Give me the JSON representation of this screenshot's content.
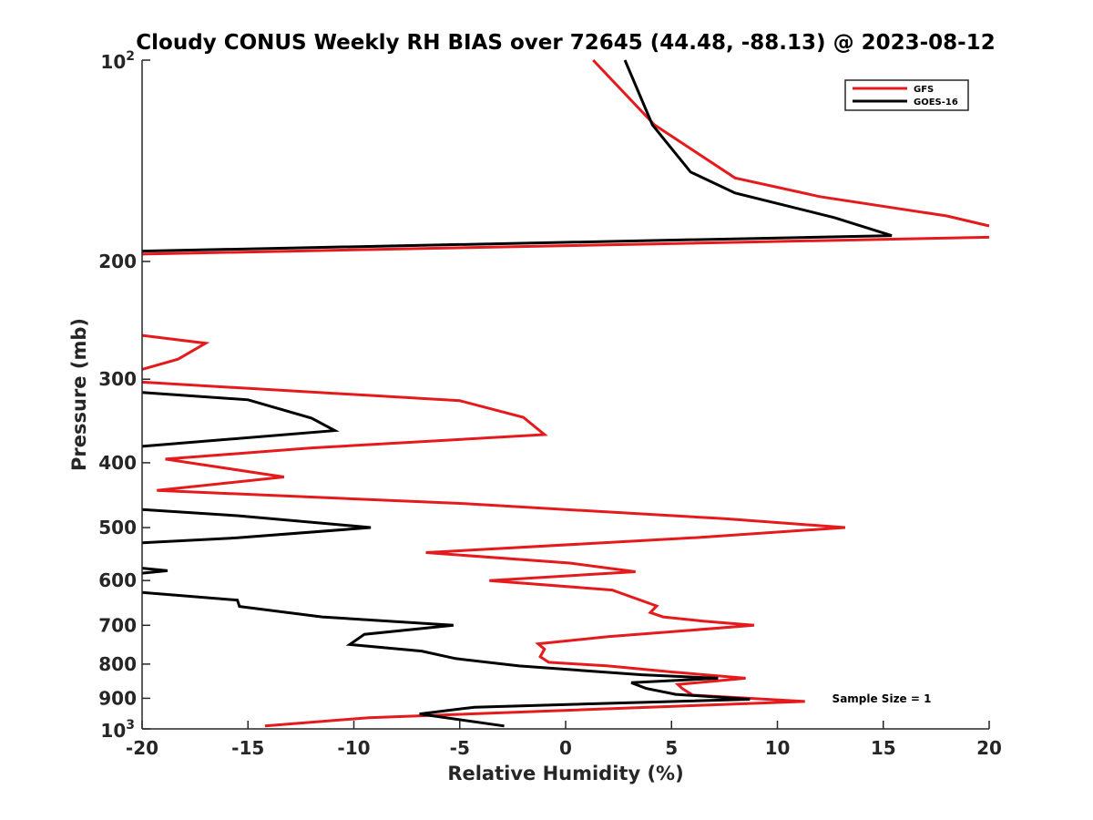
{
  "chart_data": {
    "type": "line",
    "title": "Cloudy CONUS Weekly RH BIAS over 72645 (44.48, -88.13) @ 2023-08-12",
    "xlabel": "Relative Humidity (%)",
    "ylabel": "Pressure (mb)",
    "xlim": [
      -20,
      20
    ],
    "ylim": [
      100,
      1000
    ],
    "y_scale": "log",
    "y_reversed": true,
    "grid": false,
    "x_ticks": [
      "-20",
      "-15",
      "-10",
      "-5",
      "0",
      "5",
      "10",
      "15",
      "20"
    ],
    "y_ticks": [
      {
        "value": 100,
        "label": "10",
        "sup": "2"
      },
      {
        "value": 200,
        "label": "200",
        "sup": ""
      },
      {
        "value": 300,
        "label": "300",
        "sup": ""
      },
      {
        "value": 400,
        "label": "400",
        "sup": ""
      },
      {
        "value": 500,
        "label": "500",
        "sup": ""
      },
      {
        "value": 600,
        "label": "600",
        "sup": ""
      },
      {
        "value": 700,
        "label": "700",
        "sup": ""
      },
      {
        "value": 800,
        "label": "800",
        "sup": ""
      },
      {
        "value": 900,
        "label": "900",
        "sup": ""
      },
      {
        "value": 1000,
        "label": "10",
        "sup": "3"
      }
    ],
    "legend_position": "top-right",
    "annotation": "Sample Size = 1",
    "series": [
      {
        "name": "GFS",
        "color": "#e41a1c",
        "segments": [
          [
            [
              1.3,
              100
            ],
            [
              4.2,
              125
            ],
            [
              8,
              150
            ],
            [
              12,
              160
            ],
            [
              18,
              171
            ],
            [
              20,
              177
            ]
          ],
          [
            [
              20,
              184
            ],
            [
              -20,
              195
            ]
          ],
          [
            [
              -20,
              258
            ],
            [
              -17,
              265
            ],
            [
              -18.3,
              280
            ],
            [
              -20,
              290
            ]
          ],
          [
            [
              -20,
              303
            ],
            [
              -5,
              323
            ],
            [
              -2,
              342
            ],
            [
              -1,
              363
            ],
            [
              -12,
              380
            ],
            [
              -18.9,
              395
            ],
            [
              -13.3,
              420
            ],
            [
              -19.3,
              440
            ],
            [
              -5,
              460
            ],
            [
              7.5,
              485
            ],
            [
              13.2,
              500
            ],
            [
              6,
              518
            ],
            [
              -6.6,
              545
            ],
            [
              0.2,
              565
            ],
            [
              3.3,
              582
            ],
            [
              -3.6,
              600
            ],
            [
              2.2,
              620
            ],
            [
              4.3,
              655
            ],
            [
              4,
              670
            ],
            [
              4.6,
              680
            ],
            [
              6.5,
              690
            ],
            [
              8.9,
              700
            ],
            [
              2,
              728
            ],
            [
              -1.3,
              746
            ],
            [
              -1,
              760
            ],
            [
              -1.2,
              780
            ],
            [
              -0.8,
              795
            ],
            [
              2,
              805
            ],
            [
              5,
              822
            ],
            [
              8.5,
              840
            ],
            [
              5.3,
              858
            ],
            [
              5.5,
              870
            ],
            [
              6,
              890
            ],
            [
              11.3,
              910
            ],
            [
              -9.3,
              962
            ],
            [
              -14.2,
              990
            ]
          ]
        ]
      },
      {
        "name": "GOES-16",
        "color": "#000000",
        "segments": [
          [
            [
              2.8,
              100
            ],
            [
              4.1,
              125
            ],
            [
              5.9,
              147
            ],
            [
              8,
              158
            ],
            [
              12.7,
              172
            ],
            [
              15.4,
              183
            ],
            [
              -20,
              193
            ]
          ],
          [
            [
              -20,
              314
            ],
            [
              -15,
              322
            ],
            [
              -12,
              343
            ],
            [
              -10.9,
              358
            ],
            [
              -20,
              378
            ]
          ],
          [
            [
              -20,
              470
            ],
            [
              -15.5,
              480
            ],
            [
              -9.2,
              500
            ],
            [
              -15.5,
              518
            ],
            [
              -20,
              527
            ]
          ],
          [
            [
              -20,
              575
            ],
            [
              -18.8,
              580
            ],
            [
              -20,
              585
            ]
          ],
          [
            [
              -20,
              625
            ],
            [
              -15.5,
              642
            ],
            [
              -15.4,
              656
            ],
            [
              -11.5,
              680
            ],
            [
              -5.3,
              700
            ],
            [
              -9.5,
              722
            ],
            [
              -10.2,
              748
            ],
            [
              -6.8,
              765
            ],
            [
              -5.2,
              785
            ],
            [
              -2.2,
              805
            ],
            [
              3.6,
              830
            ],
            [
              7.2,
              840
            ],
            [
              3.1,
              853
            ],
            [
              3.8,
              870
            ],
            [
              5.2,
              888
            ],
            [
              8.7,
              903
            ],
            [
              -4.3,
              928
            ],
            [
              -6.9,
              950
            ],
            [
              -2.9,
              990
            ]
          ]
        ]
      }
    ]
  },
  "legend_entries": [
    {
      "name": "GFS",
      "color": "#e41a1c"
    },
    {
      "name": "GOES-16",
      "color": "#000000"
    }
  ]
}
